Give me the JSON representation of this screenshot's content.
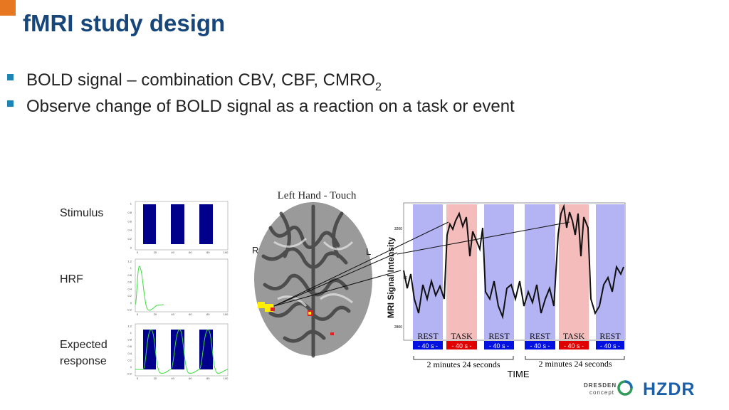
{
  "title": "fMRI study design",
  "bullets": [
    {
      "text": "BOLD signal – combination CBV, CBF, CMRO",
      "subscript": "2"
    },
    {
      "text": "Observe change of BOLD signal as a reaction on a task or event"
    }
  ],
  "panels": [
    {
      "label": [
        "Stimulus"
      ],
      "xticks": [
        0,
        20,
        40,
        60,
        80,
        100
      ],
      "yticks": [
        0,
        0.2,
        0.4,
        0.6,
        0.8,
        1
      ]
    },
    {
      "label": [
        "HRF"
      ],
      "xticks": [
        0,
        20,
        40,
        60,
        80,
        100
      ],
      "yticks": [
        -0.2,
        0,
        0.2,
        0.4,
        0.6,
        0.8,
        1,
        1.2
      ]
    },
    {
      "label": [
        "Expected",
        "response"
      ],
      "xticks": [
        0,
        20,
        40,
        60,
        80,
        100
      ],
      "yticks": [
        -0.2,
        0,
        0.2,
        0.4,
        0.6,
        0.8,
        1,
        1.2
      ]
    }
  ],
  "brain": {
    "title": "Left Hand - Touch",
    "left": "R",
    "right": "L"
  },
  "signal": {
    "y_label": "MRI Signal Intensity",
    "yticks": [
      "3200",
      "00",
      "2800"
    ],
    "blocks": [
      {
        "phase": "REST",
        "duration": "- 40 s -"
      },
      {
        "phase": "TASK",
        "duration": "- 40 s -"
      },
      {
        "phase": "REST",
        "duration": "- 40 s -"
      },
      {
        "phase": "REST",
        "duration": "- 40 s -"
      },
      {
        "phase": "TASK",
        "duration": "- 40 s -"
      },
      {
        "phase": "REST",
        "duration": "- 40 s -"
      }
    ],
    "periods": [
      "2 minutes 24 seconds",
      "2 minutes 24 seconds"
    ],
    "x_label": "TIME"
  },
  "logo": {
    "name": "DRESDEN",
    "sub": "concept",
    "org": "HZDR"
  }
}
